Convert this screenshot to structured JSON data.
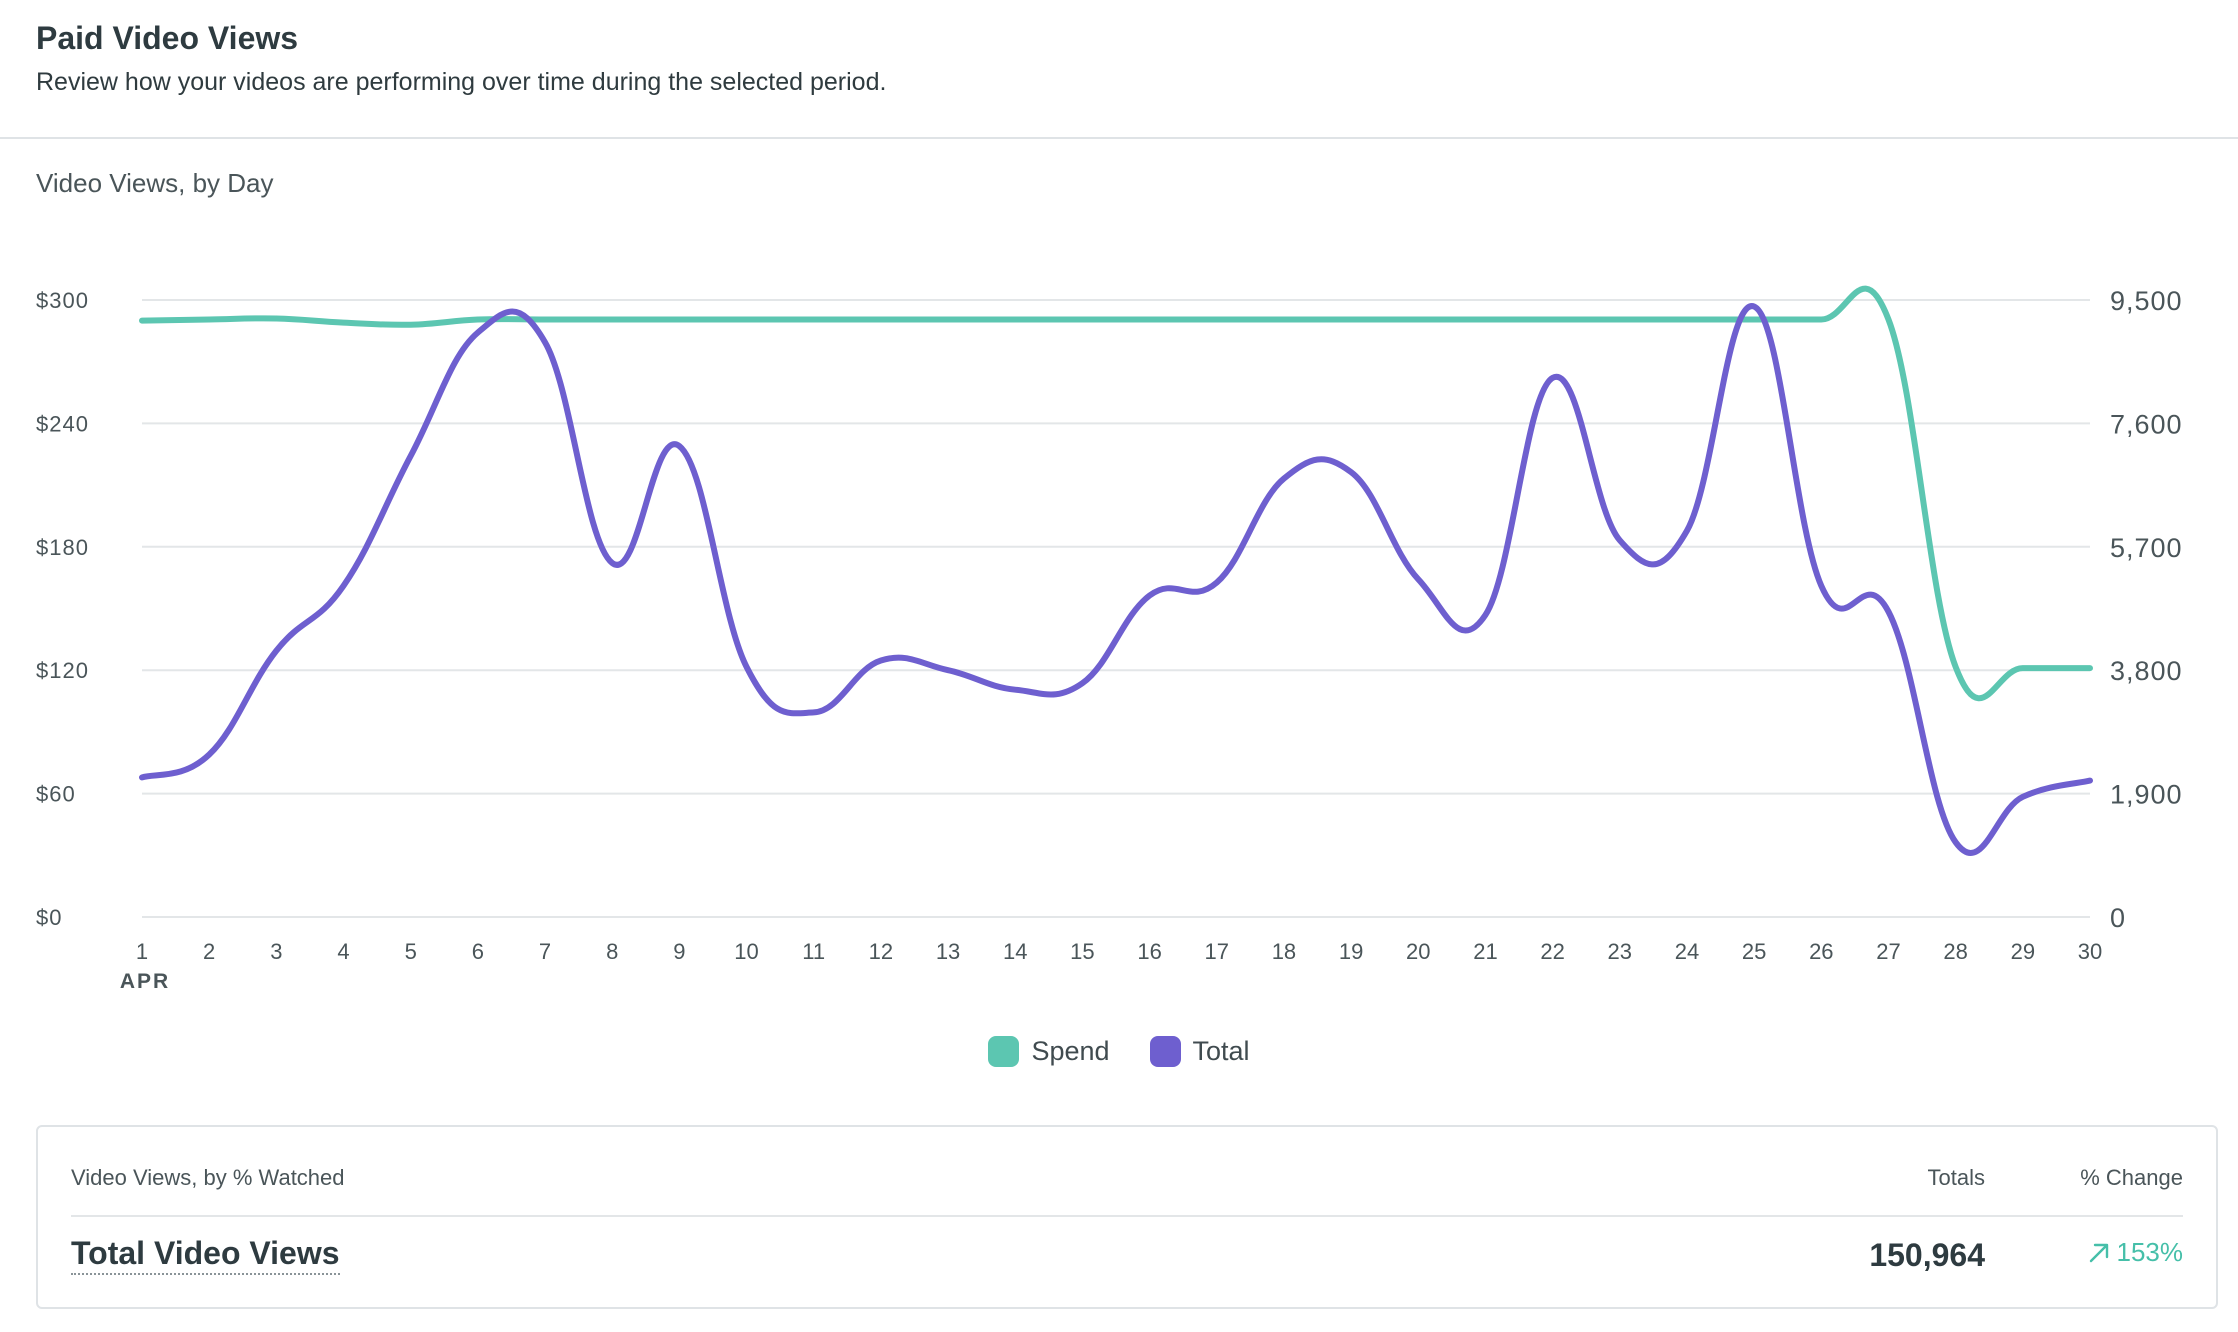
{
  "header": {
    "title": "Paid Video Views",
    "subtitle": "Review how your videos are performing over time during the selected period."
  },
  "chart_title": "Video Views, by Day",
  "colors": {
    "spend": "#5cc6b1",
    "total": "#6e5fcf",
    "grid": "#e3e6e8",
    "change_up": "#46bfa9"
  },
  "chart_data": {
    "type": "line",
    "x": [
      1,
      2,
      3,
      4,
      5,
      6,
      7,
      8,
      9,
      10,
      11,
      12,
      13,
      14,
      15,
      16,
      17,
      18,
      19,
      20,
      21,
      22,
      23,
      24,
      25,
      26,
      27,
      28,
      29,
      30
    ],
    "x_month_label": "APR",
    "y_left_ticks": [
      "$0",
      "$60",
      "$120",
      "$180",
      "$240",
      "$300"
    ],
    "y_left_range": [
      0,
      300
    ],
    "y_right_ticks": [
      "0",
      "1,900",
      "3,800",
      "5,700",
      "7,600",
      "9,500"
    ],
    "y_right_range": [
      0,
      9500
    ],
    "grid": true,
    "legend_position": "bottom-center",
    "series": [
      {
        "name": "Spend",
        "axis": "left",
        "values": [
          290,
          290.5,
          291,
          289,
          288,
          290.5,
          290.5,
          290.5,
          290.5,
          290.5,
          290.5,
          290.5,
          290.5,
          290.5,
          290.5,
          290.5,
          290.5,
          290.5,
          290.5,
          290.5,
          290.5,
          290.5,
          290.5,
          290.5,
          290.5,
          290.5,
          290.5,
          121.5,
          121,
          121
        ]
      },
      {
        "name": "Total",
        "axis": "right",
        "values": [
          2150,
          2500,
          4100,
          5100,
          7100,
          9000,
          8850,
          5450,
          7250,
          3850,
          3150,
          3950,
          3800,
          3500,
          3600,
          4950,
          5150,
          6750,
          6850,
          5200,
          4650,
          8300,
          5800,
          5950,
          9400,
          5100,
          4700,
          1150,
          1850,
          2100
        ]
      }
    ]
  },
  "legend": {
    "spend": "Spend",
    "total": "Total"
  },
  "table": {
    "col_label": "Video Views, by % Watched",
    "col_totals": "Totals",
    "col_change": "% Change",
    "row_label": "Total Video Views",
    "row_total": "150,964",
    "row_change": "153%",
    "change_icon": "arrow-up-right-icon"
  }
}
